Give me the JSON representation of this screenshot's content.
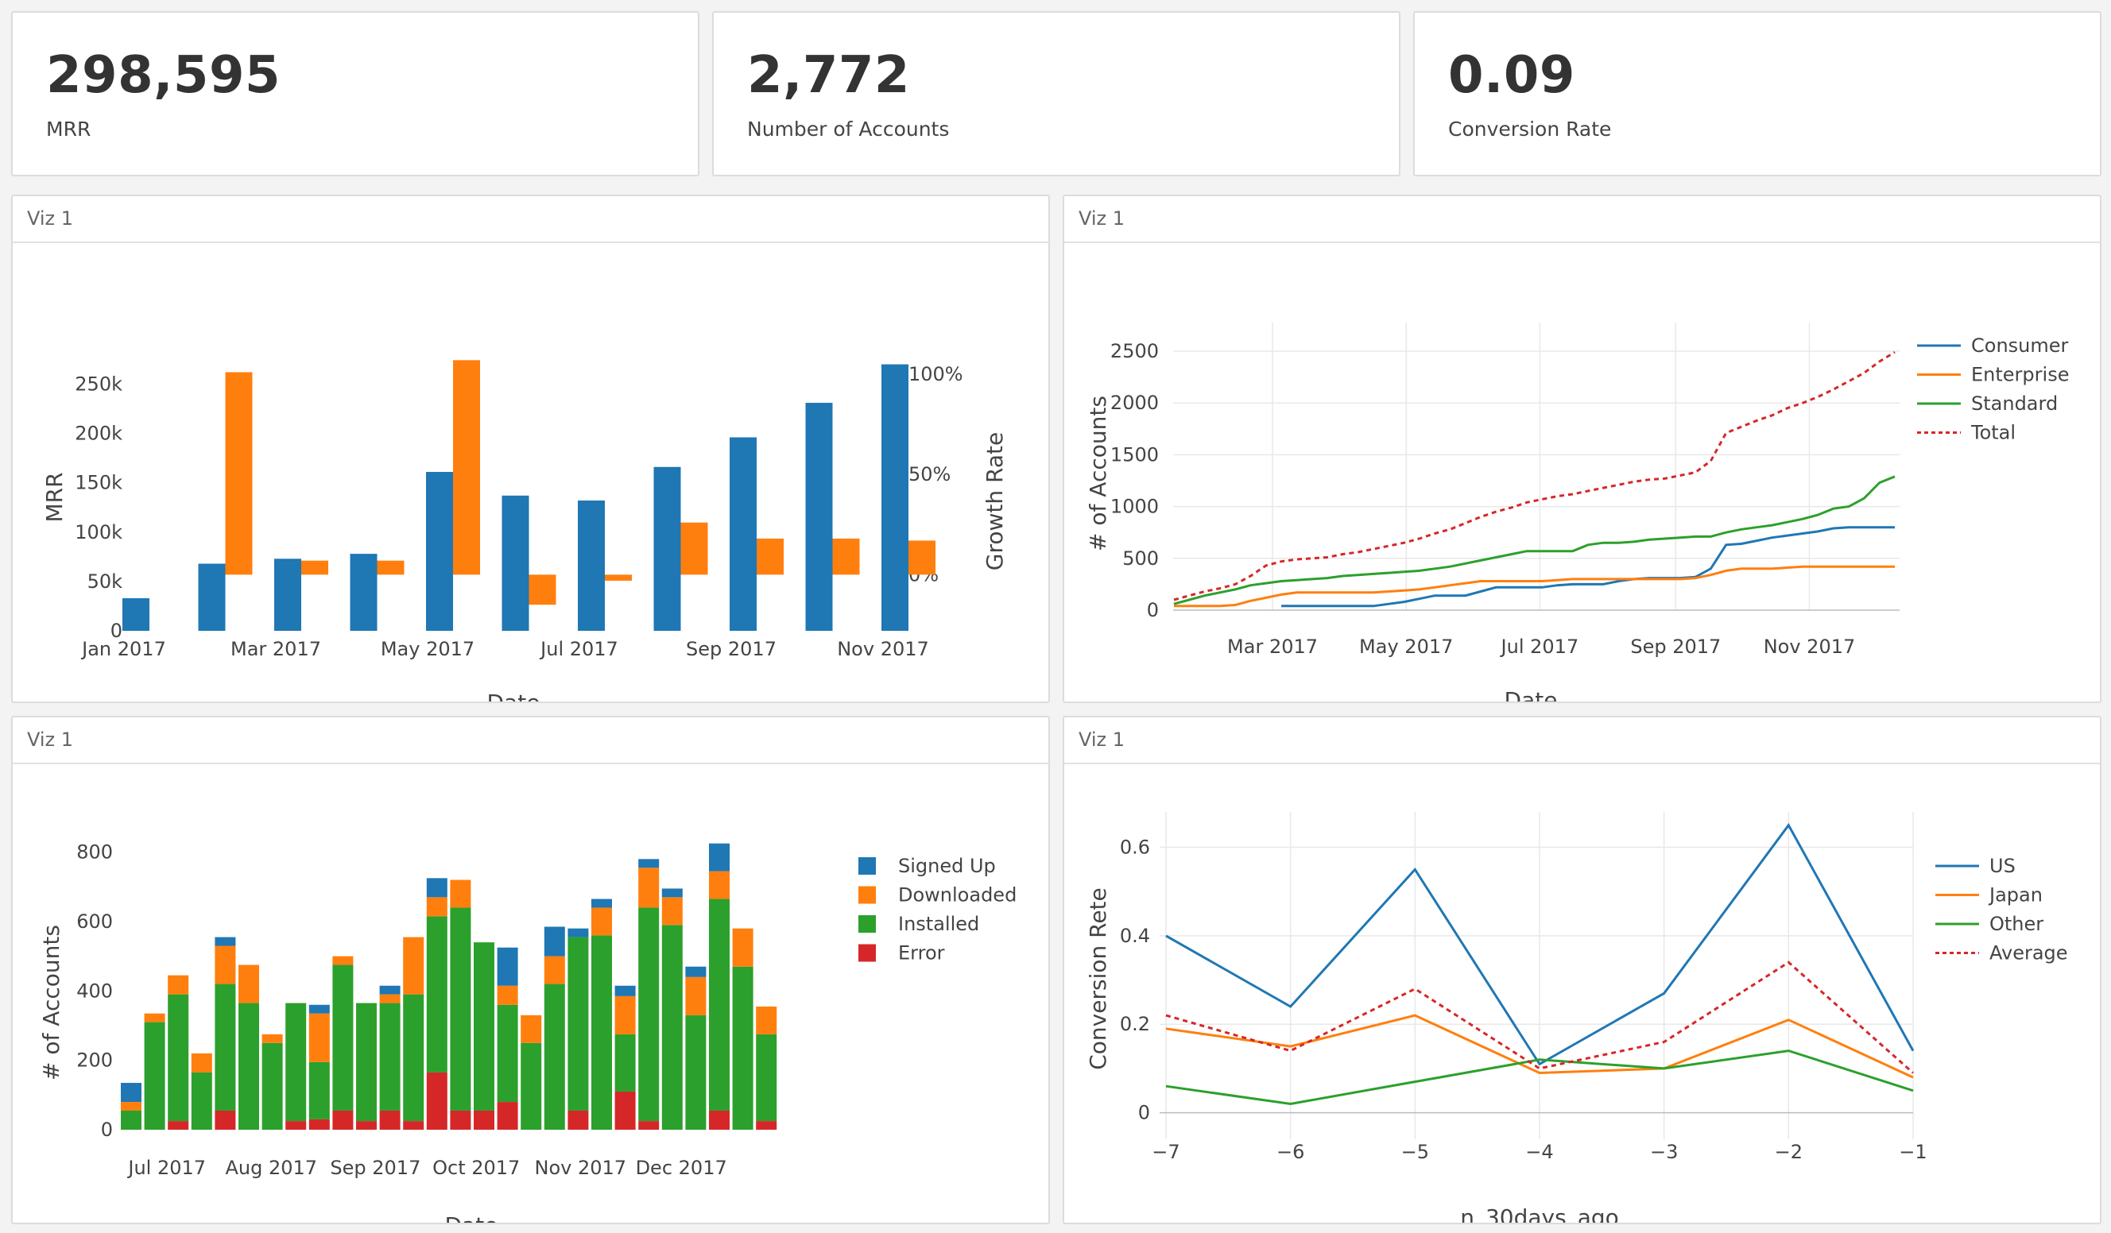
{
  "kpis": [
    {
      "value": "298,595",
      "label": "MRR"
    },
    {
      "value": "2,772",
      "label": "Number of Accounts"
    },
    {
      "value": "0.09",
      "label": "Conversion Rate"
    }
  ],
  "panels": [
    {
      "title": "Viz 1"
    },
    {
      "title": "Viz 1"
    },
    {
      "title": "Viz 1"
    },
    {
      "title": "Viz 1"
    }
  ],
  "colors": {
    "blue": "#1f77b4",
    "orange": "#ff7f0e",
    "green": "#2ca02c",
    "red": "#d62728",
    "grid": "#e8e8e8"
  },
  "chart_data": [
    {
      "type": "bar",
      "categories": [
        "Jan 2017",
        "Feb 2017",
        "Mar 2017",
        "Apr 2017",
        "May 2017",
        "Jun 2017",
        "Jul 2017",
        "Aug 2017",
        "Sep 2017",
        "Oct 2017",
        "Nov 2017"
      ],
      "xtick_labels": [
        "Jan 2017",
        "Mar 2017",
        "May 2017",
        "Jul 2017",
        "Sep 2017",
        "Nov 2017"
      ],
      "xlabel": "Date",
      "ylabel": "MRR",
      "y2label": "Growth Rate",
      "ylim": [
        0,
        260000
      ],
      "yticks": [
        "0",
        "50k",
        "100k",
        "150k",
        "200k",
        "250k"
      ],
      "y2lim": [
        -28,
        100
      ],
      "y2ticks": [
        "0%",
        "50%",
        "100%"
      ],
      "series": [
        {
          "name": "MRR",
          "axis": "left",
          "values": [
            33000,
            68000,
            73000,
            78000,
            161000,
            137000,
            132000,
            166000,
            196000,
            231000,
            270000
          ]
        },
        {
          "name": "Growth Rate",
          "axis": "right",
          "values": [
            null,
            101,
            7,
            7,
            107,
            -15,
            -3,
            26,
            18,
            18,
            17
          ]
        }
      ]
    },
    {
      "type": "line",
      "x": [
        "2017-01-15",
        "2017-01-22",
        "2017-01-29",
        "2017-02-05",
        "2017-02-12",
        "2017-02-19",
        "2017-02-26",
        "2017-03-05",
        "2017-03-12",
        "2017-03-19",
        "2017-03-26",
        "2017-04-02",
        "2017-04-09",
        "2017-04-16",
        "2017-04-23",
        "2017-04-30",
        "2017-05-07",
        "2017-05-14",
        "2017-05-21",
        "2017-05-28",
        "2017-06-04",
        "2017-06-11",
        "2017-06-18",
        "2017-06-25",
        "2017-07-02",
        "2017-07-09",
        "2017-07-16",
        "2017-07-23",
        "2017-07-30",
        "2017-08-06",
        "2017-08-13",
        "2017-08-20",
        "2017-08-27",
        "2017-09-03",
        "2017-09-10",
        "2017-09-17",
        "2017-09-24",
        "2017-10-01",
        "2017-10-08",
        "2017-10-15",
        "2017-10-22",
        "2017-10-29",
        "2017-11-05",
        "2017-11-12",
        "2017-11-19",
        "2017-11-26",
        "2017-12-03",
        "2017-12-10"
      ],
      "xtick_labels": [
        "Mar 2017",
        "May 2017",
        "Jul 2017",
        "Sep 2017",
        "Nov 2017"
      ],
      "xlabel": "Date",
      "ylabel": "# of Accounts",
      "ylim": [
        0,
        2500
      ],
      "yticks": [
        "0",
        "500",
        "1000",
        "1500",
        "2000",
        "2500"
      ],
      "legend": "top-right",
      "series": [
        {
          "name": "Consumer",
          "values": [
            null,
            null,
            null,
            null,
            null,
            null,
            null,
            40,
            40,
            40,
            40,
            40,
            40,
            40,
            60,
            80,
            110,
            140,
            140,
            140,
            180,
            220,
            220,
            220,
            220,
            240,
            250,
            250,
            250,
            280,
            300,
            310,
            310,
            310,
            320,
            400,
            630,
            640,
            670,
            700,
            720,
            740,
            760,
            790,
            800,
            800,
            800,
            800
          ]
        },
        {
          "name": "Enterprise",
          "values": [
            40,
            40,
            40,
            40,
            50,
            90,
            120,
            150,
            170,
            170,
            170,
            170,
            170,
            170,
            180,
            190,
            200,
            220,
            240,
            260,
            280,
            280,
            280,
            280,
            280,
            290,
            300,
            300,
            300,
            300,
            300,
            300,
            300,
            300,
            310,
            340,
            380,
            400,
            400,
            400,
            410,
            420,
            420,
            420,
            420,
            420,
            420,
            420
          ]
        },
        {
          "name": "Standard",
          "values": [
            60,
            100,
            140,
            170,
            200,
            240,
            260,
            280,
            290,
            300,
            310,
            330,
            340,
            350,
            360,
            370,
            380,
            400,
            420,
            450,
            480,
            510,
            540,
            570,
            570,
            570,
            570,
            630,
            650,
            650,
            660,
            680,
            690,
            700,
            710,
            710,
            750,
            780,
            800,
            820,
            850,
            880,
            920,
            980,
            1000,
            1080,
            1230,
            1290
          ]
        },
        {
          "name": "Total",
          "dashed": true,
          "values": [
            100,
            140,
            180,
            210,
            250,
            330,
            430,
            470,
            490,
            500,
            510,
            540,
            560,
            590,
            620,
            650,
            690,
            740,
            780,
            840,
            900,
            950,
            990,
            1040,
            1070,
            1100,
            1120,
            1150,
            1180,
            1210,
            1240,
            1260,
            1270,
            1300,
            1330,
            1440,
            1710,
            1770,
            1830,
            1880,
            1950,
            2000,
            2060,
            2130,
            2210,
            2290,
            2400,
            2490
          ]
        }
      ]
    },
    {
      "type": "bar",
      "stacked": true,
      "categories": [
        "2017-06-17",
        "2017-06-24",
        "2017-07-01",
        "2017-07-08",
        "2017-07-15",
        "2017-07-22",
        "2017-07-29",
        "2017-08-05",
        "2017-08-12",
        "2017-08-19",
        "2017-08-26",
        "2017-09-02",
        "2017-09-09",
        "2017-09-16",
        "2017-09-23",
        "2017-09-30",
        "2017-10-07",
        "2017-10-14",
        "2017-10-21",
        "2017-10-28",
        "2017-11-04",
        "2017-11-11",
        "2017-11-18",
        "2017-11-25",
        "2017-12-02",
        "2017-12-09",
        "2017-12-16",
        "2017-12-23",
        "2017-12-30",
        "2018-01-06"
      ],
      "xtick_labels": [
        "Jul 2017",
        "Aug 2017",
        "Sep 2017",
        "Oct 2017",
        "Nov 2017",
        "Dec 2017"
      ],
      "xlabel": "Date",
      "ylabel": "# of Accounts",
      "ylim": [
        0,
        870
      ],
      "yticks": [
        "0",
        "200",
        "400",
        "600",
        "800"
      ],
      "legend": "top-right",
      "series": [
        {
          "name": "Error",
          "values": [
            0,
            0,
            25,
            0,
            55,
            0,
            0,
            25,
            30,
            55,
            25,
            55,
            25,
            165,
            55,
            55,
            80,
            0,
            0,
            55,
            0,
            110,
            25,
            0,
            0,
            55,
            0,
            25,
            0,
            0
          ]
        },
        {
          "name": "Installed",
          "values": [
            55,
            310,
            365,
            165,
            365,
            365,
            250,
            340,
            165,
            420,
            340,
            310,
            365,
            450,
            585,
            485,
            280,
            250,
            420,
            500,
            560,
            165,
            615,
            590,
            330,
            610,
            470,
            250,
            0,
            0
          ]
        },
        {
          "name": "Downloaded",
          "values": [
            25,
            25,
            55,
            55,
            110,
            110,
            25,
            0,
            140,
            25,
            0,
            25,
            165,
            55,
            80,
            0,
            55,
            80,
            80,
            0,
            80,
            110,
            115,
            80,
            110,
            80,
            110,
            80,
            0,
            0
          ]
        },
        {
          "name": "Signed Up",
          "values": [
            55,
            0,
            0,
            0,
            25,
            0,
            0,
            0,
            25,
            0,
            0,
            25,
            0,
            55,
            0,
            0,
            110,
            0,
            85,
            25,
            25,
            30,
            25,
            25,
            30,
            80,
            0,
            0,
            0,
            0
          ]
        }
      ]
    },
    {
      "type": "line",
      "x": [
        -7,
        -6,
        -5,
        -4,
        -3,
        -2,
        -1
      ],
      "xtick_labels": [
        "−7",
        "−6",
        "−5",
        "−4",
        "−3",
        "−2",
        "−1"
      ],
      "xlabel": "n_30days_ago",
      "ylabel": "Conversion Rete",
      "ylim": [
        -0.06,
        0.68
      ],
      "yticks": [
        "0",
        "0.2",
        "0.4",
        "0.6"
      ],
      "legend": "top-right",
      "series": [
        {
          "name": "US",
          "values": [
            0.4,
            0.24,
            0.55,
            0.11,
            0.27,
            0.65,
            0.14
          ]
        },
        {
          "name": "Japan",
          "values": [
            0.19,
            0.15,
            0.22,
            0.09,
            0.1,
            0.21,
            0.08
          ]
        },
        {
          "name": "Other",
          "values": [
            0.06,
            0.02,
            0.07,
            0.12,
            0.1,
            0.14,
            0.05
          ]
        },
        {
          "name": "Average",
          "dashed": true,
          "values": [
            0.22,
            0.14,
            0.28,
            0.1,
            0.16,
            0.34,
            0.09
          ]
        }
      ]
    }
  ]
}
